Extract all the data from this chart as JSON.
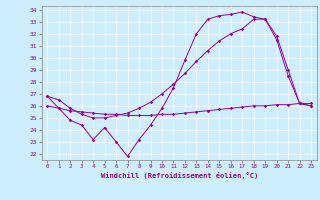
{
  "xlabel": "Windchill (Refroidissement éolien,°C)",
  "bg_color": "#cceeff",
  "line_color": "#990099",
  "xlim": [
    -0.5,
    23.5
  ],
  "ylim": [
    21.5,
    34.3
  ],
  "xticks": [
    0,
    1,
    2,
    3,
    4,
    5,
    6,
    7,
    8,
    9,
    10,
    11,
    12,
    13,
    14,
    15,
    16,
    17,
    18,
    19,
    20,
    21,
    22,
    23
  ],
  "yticks": [
    22,
    23,
    24,
    25,
    26,
    27,
    28,
    29,
    30,
    31,
    32,
    33,
    34
  ],
  "line_A_x": [
    0,
    1,
    2,
    3,
    4,
    5,
    6,
    7,
    8,
    9,
    10,
    11,
    12,
    13,
    14,
    15,
    16,
    17,
    18,
    19,
    20,
    21,
    22,
    23
  ],
  "line_A_y": [
    26.0,
    25.8,
    25.6,
    25.5,
    25.4,
    25.3,
    25.3,
    25.2,
    25.2,
    25.2,
    25.3,
    25.3,
    25.4,
    25.5,
    25.6,
    25.7,
    25.8,
    25.9,
    26.0,
    26.0,
    26.1,
    26.1,
    26.2,
    26.2
  ],
  "line_B_x": [
    0,
    1,
    2,
    3,
    4,
    5,
    6,
    7,
    8,
    9,
    10,
    11,
    12,
    13,
    14,
    15,
    16,
    17,
    18,
    19,
    20,
    21,
    22,
    23
  ],
  "line_B_y": [
    26.8,
    25.8,
    24.8,
    24.4,
    23.2,
    24.2,
    23.0,
    21.8,
    23.2,
    24.4,
    25.8,
    27.5,
    29.8,
    32.0,
    33.2,
    33.5,
    33.6,
    33.8,
    33.4,
    33.2,
    31.8,
    29.0,
    26.2,
    26.0
  ],
  "line_C_x": [
    0,
    1,
    2,
    3,
    4,
    5,
    6,
    7,
    8,
    9,
    10,
    11,
    12,
    13,
    14,
    15,
    16,
    17,
    18,
    19,
    20,
    21,
    22,
    23
  ],
  "line_C_y": [
    26.8,
    26.5,
    25.8,
    25.3,
    25.0,
    25.0,
    25.2,
    25.4,
    25.8,
    26.3,
    27.0,
    27.8,
    28.7,
    29.7,
    30.6,
    31.4,
    32.0,
    32.4,
    33.2,
    33.2,
    31.5,
    28.5,
    26.2,
    26.0
  ]
}
